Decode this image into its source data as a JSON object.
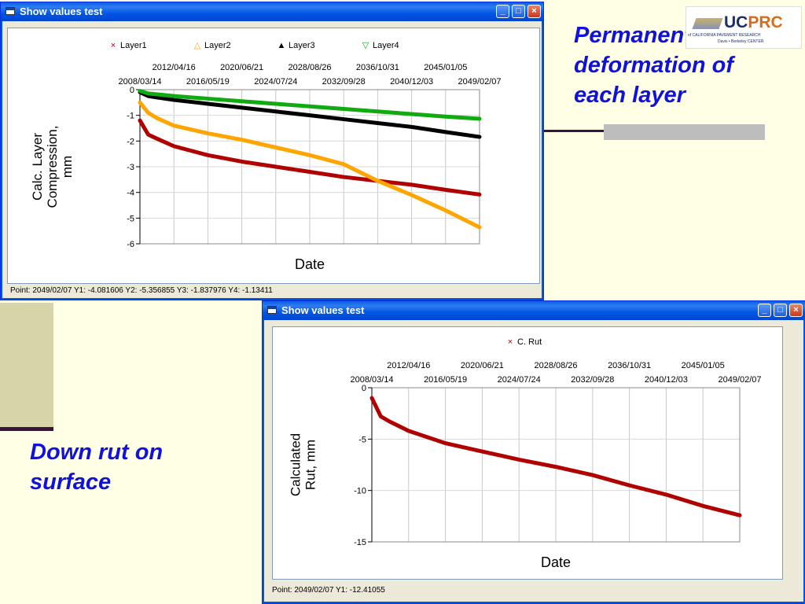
{
  "slide": {
    "caption_top": "Permanent\ndeformation of\neach layer",
    "caption_bottom": "Down rut on\nsurface",
    "logo_text_uc": "UC",
    "logo_text_prc": "PRC",
    "logo_subtext": "of CALIFORNIA PAVEMENT RESEARCH",
    "logo_subtext2": "Davis • Berkeley CENTER"
  },
  "windows": [
    {
      "title": "Show values  test",
      "status": "Point: 2049/02/07   Y1: -4.081606   Y2: -5.356855   Y3: -1.837976   Y4: -1.13411"
    },
    {
      "title": "Show values  test",
      "status": "Point: 2049/02/07   Y1: -12.41055"
    }
  ],
  "colors": {
    "layer1": "#B00000",
    "layer2": "#FFA500",
    "layer3": "#000000",
    "layer4": "#11AA11",
    "rut": "#B00000"
  },
  "chart_data": [
    {
      "type": "line",
      "ylabel": "Calc. Layer\nCompression,\nmm",
      "xlabel": "Date",
      "ylim": [
        -6,
        0
      ],
      "yticks": [
        0,
        -1,
        -2,
        -3,
        -4,
        -5,
        -6
      ],
      "x_ticks_lower": [
        "2008/03/14",
        "2016/05/19",
        "2024/07/24",
        "2032/09/28",
        "2040/12/03",
        "2049/02/07"
      ],
      "x_ticks_upper": [
        "2012/04/16",
        "2020/06/21",
        "2028/08/26",
        "2036/10/31",
        "2045/01/05"
      ],
      "grid": true,
      "legend_placement": "top",
      "x": [
        "2008/03/14",
        "2009/03/14",
        "2010/03/14",
        "2012/04/16",
        "2016/05/19",
        "2020/06/21",
        "2024/07/24",
        "2028/08/26",
        "2032/09/28",
        "2036/10/31",
        "2040/12/03",
        "2045/01/05",
        "2049/02/07"
      ],
      "series": [
        {
          "name": "Layer1",
          "marker": "×",
          "values": [
            -1.2,
            -1.75,
            -1.9,
            -2.2,
            -2.55,
            -2.8,
            -3.0,
            -3.2,
            -3.4,
            -3.55,
            -3.7,
            -3.9,
            -4.081606
          ]
        },
        {
          "name": "Layer2",
          "marker": "△",
          "values": [
            -0.5,
            -0.9,
            -1.1,
            -1.4,
            -1.7,
            -1.95,
            -2.25,
            -2.55,
            -2.9,
            -3.55,
            -4.1,
            -4.7,
            -5.356855
          ]
        },
        {
          "name": "Layer3",
          "marker": "▲",
          "values": [
            -0.1,
            -0.25,
            -0.3,
            -0.4,
            -0.55,
            -0.7,
            -0.85,
            -1.0,
            -1.15,
            -1.3,
            -1.45,
            -1.65,
            -1.837976
          ]
        },
        {
          "name": "Layer4",
          "marker": "▽",
          "values": [
            -0.05,
            -0.15,
            -0.18,
            -0.25,
            -0.35,
            -0.45,
            -0.55,
            -0.65,
            -0.75,
            -0.85,
            -0.95,
            -1.05,
            -1.13411
          ]
        }
      ]
    },
    {
      "type": "line",
      "ylabel": "Calculated\nRut, mm",
      "xlabel": "Date",
      "ylim": [
        -15,
        0
      ],
      "yticks": [
        0,
        -5,
        -10,
        -15
      ],
      "x_ticks_lower": [
        "2008/03/14",
        "2016/05/19",
        "2024/07/24",
        "2032/09/28",
        "2040/12/03",
        "2049/02/07"
      ],
      "x_ticks_upper": [
        "2012/04/16",
        "2020/06/21",
        "2028/08/26",
        "2036/10/31",
        "2045/01/05"
      ],
      "grid": true,
      "legend_placement": "top",
      "x": [
        "2008/03/14",
        "2009/03/14",
        "2010/03/14",
        "2012/04/16",
        "2016/05/19",
        "2020/06/21",
        "2024/07/24",
        "2028/08/26",
        "2032/09/28",
        "2036/10/31",
        "2040/12/03",
        "2045/01/05",
        "2049/02/07"
      ],
      "series": [
        {
          "name": "C. Rut",
          "marker": "×",
          "values": [
            -1.0,
            -2.8,
            -3.3,
            -4.2,
            -5.4,
            -6.2,
            -7.0,
            -7.7,
            -8.5,
            -9.5,
            -10.4,
            -11.5,
            -12.41055
          ]
        }
      ]
    }
  ]
}
